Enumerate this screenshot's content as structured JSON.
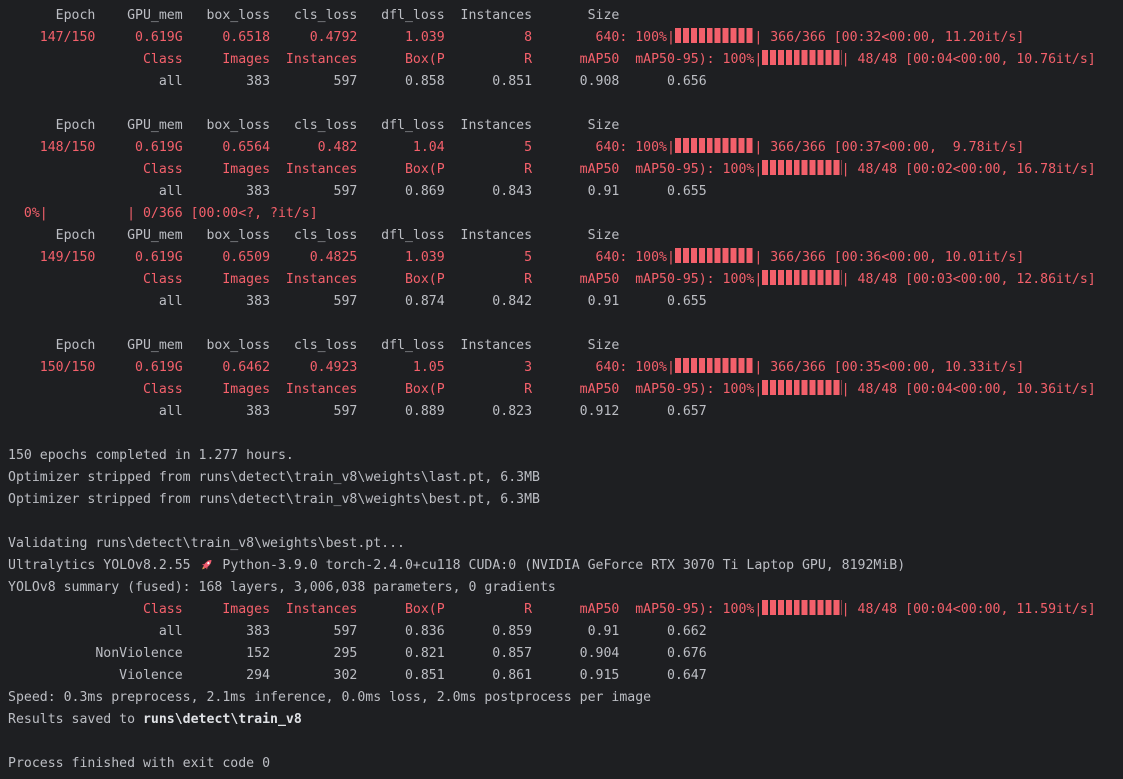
{
  "terminal": {
    "colors": {
      "background": "#1e1f22",
      "foreground": "#bcbec4",
      "red": "#f4606b",
      "bold_white": "#dfe1e5",
      "rocket_body": "#ef5b6e",
      "rocket_flame": "#f59e54"
    },
    "lines": [
      {
        "segments": [
          {
            "t": "      Epoch    GPU_mem   box_loss   cls_loss   dfl_loss  Instances       Size",
            "c": "gray"
          }
        ]
      },
      {
        "segments": [
          {
            "t": "    147/150     0.619G     0.6518     0.4792      1.039          8        640: 100%|",
            "c": "red"
          },
          {
            "bar": 10
          },
          {
            "t": "| 366/366 [00:32<00:00, 11.20it/s]",
            "c": "red"
          }
        ]
      },
      {
        "segments": [
          {
            "t": "                 Class     Images  Instances      Box(P          R      mAP50  mAP50-95): 100%|",
            "c": "red"
          },
          {
            "bar": 10
          },
          {
            "t": "| 48/48 [00:04<00:00, 10.76it/s]",
            "c": "red"
          }
        ]
      },
      {
        "segments": [
          {
            "t": "                   all        383        597      0.858      0.851      0.908      0.656",
            "c": "gray"
          }
        ]
      },
      {
        "segments": []
      },
      {
        "segments": [
          {
            "t": "      Epoch    GPU_mem   box_loss   cls_loss   dfl_loss  Instances       Size",
            "c": "gray"
          }
        ]
      },
      {
        "segments": [
          {
            "t": "    148/150     0.619G     0.6564      0.482       1.04          5        640: 100%|",
            "c": "red"
          },
          {
            "bar": 10
          },
          {
            "t": "| 366/366 [00:37<00:00,  9.78it/s]",
            "c": "red"
          }
        ]
      },
      {
        "segments": [
          {
            "t": "                 Class     Images  Instances      Box(P          R      mAP50  mAP50-95): 100%|",
            "c": "red"
          },
          {
            "bar": 10
          },
          {
            "t": "| 48/48 [00:02<00:00, 16.78it/s]",
            "c": "red"
          }
        ]
      },
      {
        "segments": [
          {
            "t": "                   all        383        597      0.869      0.843       0.91      0.655",
            "c": "gray"
          }
        ]
      },
      {
        "segments": [
          {
            "t": "  0%|          | 0/366 [00:00<?, ?it/s]",
            "c": "red"
          }
        ]
      },
      {
        "segments": [
          {
            "t": "      Epoch    GPU_mem   box_loss   cls_loss   dfl_loss  Instances       Size",
            "c": "gray"
          }
        ]
      },
      {
        "segments": [
          {
            "t": "    149/150     0.619G     0.6509     0.4825      1.039          5        640: 100%|",
            "c": "red"
          },
          {
            "bar": 10
          },
          {
            "t": "| 366/366 [00:36<00:00, 10.01it/s]",
            "c": "red"
          }
        ]
      },
      {
        "segments": [
          {
            "t": "                 Class     Images  Instances      Box(P          R      mAP50  mAP50-95): 100%|",
            "c": "red"
          },
          {
            "bar": 10
          },
          {
            "t": "| 48/48 [00:03<00:00, 12.86it/s]",
            "c": "red"
          }
        ]
      },
      {
        "segments": [
          {
            "t": "                   all        383        597      0.874      0.842       0.91      0.655",
            "c": "gray"
          }
        ]
      },
      {
        "segments": []
      },
      {
        "segments": [
          {
            "t": "      Epoch    GPU_mem   box_loss   cls_loss   dfl_loss  Instances       Size",
            "c": "gray"
          }
        ]
      },
      {
        "segments": [
          {
            "t": "    150/150     0.619G     0.6462     0.4923       1.05          3        640: 100%|",
            "c": "red"
          },
          {
            "bar": 10
          },
          {
            "t": "| 366/366 [00:35<00:00, 10.33it/s]",
            "c": "red"
          }
        ]
      },
      {
        "segments": [
          {
            "t": "                 Class     Images  Instances      Box(P          R      mAP50  mAP50-95): 100%|",
            "c": "red"
          },
          {
            "bar": 10
          },
          {
            "t": "| 48/48 [00:04<00:00, 10.36it/s]",
            "c": "red"
          }
        ]
      },
      {
        "segments": [
          {
            "t": "                   all        383        597      0.889      0.823      0.912      0.657",
            "c": "gray"
          }
        ]
      },
      {
        "segments": []
      },
      {
        "segments": [
          {
            "t": "150 epochs completed in 1.277 hours.",
            "c": "gray"
          }
        ]
      },
      {
        "segments": [
          {
            "t": "Optimizer stripped from runs\\detect\\train_v8\\weights\\last.pt, 6.3MB",
            "c": "gray"
          }
        ]
      },
      {
        "segments": [
          {
            "t": "Optimizer stripped from runs\\detect\\train_v8\\weights\\best.pt, 6.3MB",
            "c": "gray"
          }
        ]
      },
      {
        "segments": []
      },
      {
        "segments": [
          {
            "t": "Validating runs\\detect\\train_v8\\weights\\best.pt...",
            "c": "gray"
          }
        ]
      },
      {
        "segments": [
          {
            "t": "Ultralytics YOLOv8.2.55 ",
            "c": "gray"
          },
          {
            "icon": "rocket"
          },
          {
            "t": " Python-3.9.0 torch-2.4.0+cu118 CUDA:0 (NVIDIA GeForce RTX 3070 Ti Laptop GPU, 8192MiB)",
            "c": "gray"
          }
        ]
      },
      {
        "segments": [
          {
            "t": "YOLOv8 summary (fused): 168 layers, 3,006,038 parameters, 0 gradients",
            "c": "gray"
          }
        ]
      },
      {
        "segments": [
          {
            "t": "                 Class     Images  Instances      Box(P          R      mAP50  mAP50-95): 100%|",
            "c": "red"
          },
          {
            "bar": 10
          },
          {
            "t": "| 48/48 [00:04<00:00, 11.59it/s]",
            "c": "red"
          }
        ]
      },
      {
        "segments": [
          {
            "t": "                   all        383        597      0.836      0.859       0.91      0.662",
            "c": "gray"
          }
        ]
      },
      {
        "segments": [
          {
            "t": "           NonViolence        152        295      0.821      0.857      0.904      0.676",
            "c": "gray"
          }
        ]
      },
      {
        "segments": [
          {
            "t": "              Violence        294        302      0.851      0.861      0.915      0.647",
            "c": "gray"
          }
        ]
      },
      {
        "segments": [
          {
            "t": "Speed: 0.3ms preprocess, 2.1ms inference, 0.0ms loss, 2.0ms postprocess per image",
            "c": "gray"
          }
        ]
      },
      {
        "segments": [
          {
            "t": "Results saved to ",
            "c": "gray"
          },
          {
            "t": "runs\\detect\\train_v8",
            "c": "b"
          }
        ]
      },
      {
        "segments": []
      },
      {
        "segments": [
          {
            "t": "Process finished with exit code 0",
            "c": "gray"
          }
        ]
      }
    ]
  }
}
